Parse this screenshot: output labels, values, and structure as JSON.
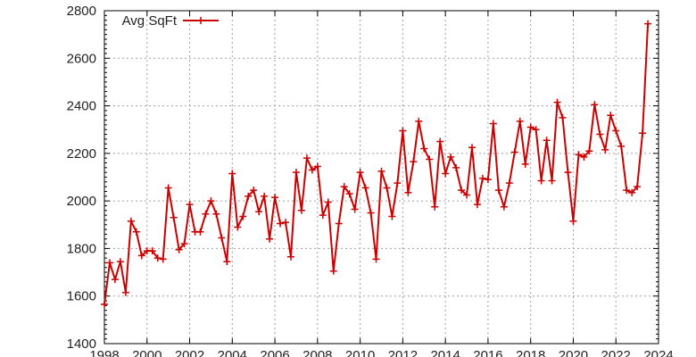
{
  "chart_data": {
    "type": "line",
    "title": "",
    "xlabel": "",
    "ylabel": "",
    "xlim": [
      1998,
      2024
    ],
    "ylim": [
      1400,
      2800
    ],
    "x_ticks": [
      "1998",
      "2000",
      "2002",
      "2004",
      "2006",
      "2008",
      "2010",
      "2012",
      "2014",
      "2016",
      "2018",
      "2020",
      "2022",
      "2024"
    ],
    "y_ticks": [
      "1400",
      "1600",
      "1800",
      "2000",
      "2200",
      "2400",
      "2600",
      "2800"
    ],
    "grid": true,
    "legend_position": "top-left",
    "color": "#cc0000",
    "marker": "plus",
    "series": [
      {
        "name": "Avg SqFt",
        "x_start": 1998.0,
        "x_step": 0.25,
        "values": [
          1565,
          1740,
          1670,
          1745,
          1615,
          1915,
          1870,
          1770,
          1790,
          1790,
          1760,
          1755,
          2055,
          1930,
          1795,
          1820,
          1985,
          1870,
          1870,
          1945,
          2000,
          1945,
          1845,
          1745,
          2115,
          1890,
          1935,
          2020,
          2045,
          1955,
          2020,
          1840,
          2015,
          1905,
          1910,
          1765,
          2120,
          1960,
          2180,
          2130,
          2145,
          1940,
          1995,
          1705,
          1905,
          2060,
          2030,
          1965,
          2120,
          2055,
          1950,
          1755,
          2125,
          2055,
          1935,
          2075,
          2295,
          2035,
          2165,
          2335,
          2220,
          2175,
          1975,
          2250,
          2115,
          2185,
          2140,
          2045,
          2025,
          2225,
          1985,
          2095,
          2090,
          2325,
          2045,
          1975,
          2075,
          2205,
          2335,
          2155,
          2310,
          2300,
          2085,
          2255,
          2085,
          2415,
          2350,
          2120,
          1915,
          2195,
          2185,
          2210,
          2405,
          2280,
          2215,
          2360,
          2295,
          2230,
          2045,
          2035,
          2060,
          2285,
          2745
        ]
      }
    ]
  }
}
